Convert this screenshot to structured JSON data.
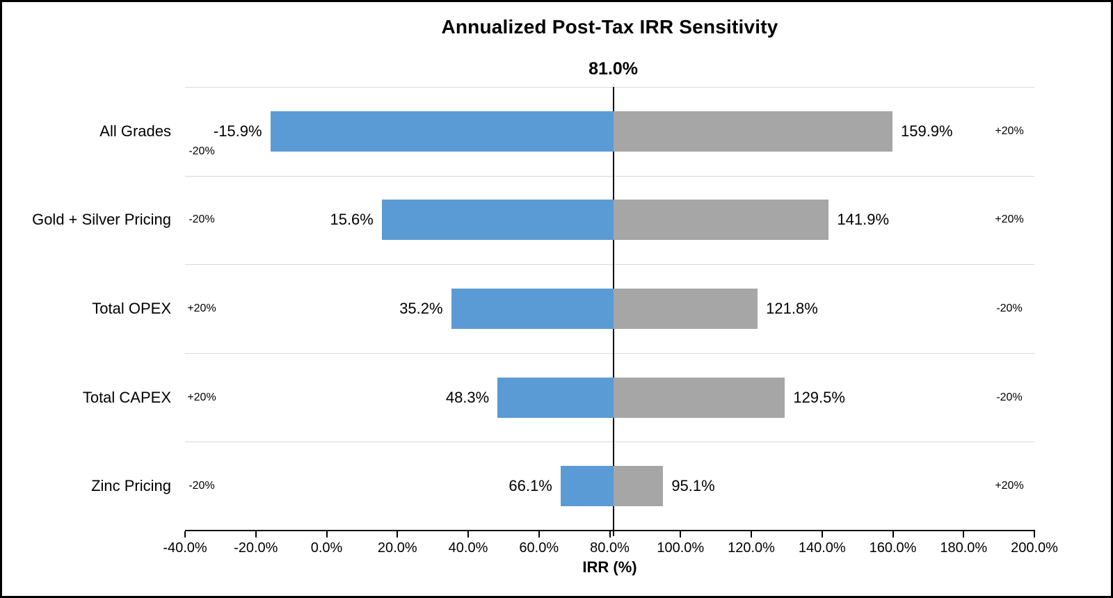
{
  "chart_data": {
    "type": "bar",
    "subtype": "tornado-sensitivity",
    "orientation": "horizontal",
    "title": "Annualized Post-Tax IRR Sensitivity",
    "center_label": "81.0%",
    "center_value": 81.0,
    "xlabel": "IRR (%)",
    "axis": {
      "min": -40,
      "max": 200,
      "tick_step": 20,
      "tick_values": [
        -40,
        -20,
        0,
        20,
        40,
        60,
        80,
        100,
        120,
        140,
        160,
        180,
        200
      ],
      "tick_labels": [
        "-40.0%",
        "-20.0%",
        "0.0%",
        "20.0%",
        "40.0%",
        "60.0%",
        "80.0%",
        "100.0%",
        "120.0%",
        "140.0%",
        "160.0%",
        "180.0%",
        "200.0%"
      ]
    },
    "grid": "row-separators-on",
    "legend_position": "none",
    "colors": {
      "low_bar": "#5b9bd5",
      "high_bar": "#a6a6a6",
      "gridline": "#d9d9d9",
      "center_line": "#000000",
      "axis_line": "#000000",
      "text": "#000000"
    },
    "rows": [
      {
        "category": "All Grades",
        "low": {
          "value": -15.9,
          "label": "-15.9%",
          "sign": "-20%",
          "sign_placement": "below"
        },
        "high": {
          "value": 159.9,
          "label": "159.9%",
          "sign": "+20%"
        }
      },
      {
        "category": "Gold + Silver Pricing",
        "low": {
          "value": 15.6,
          "label": "15.6%",
          "sign": "-20%",
          "sign_placement": "inline"
        },
        "high": {
          "value": 141.9,
          "label": "141.9%",
          "sign": "+20%"
        }
      },
      {
        "category": "Total OPEX",
        "low": {
          "value": 35.2,
          "label": "35.2%",
          "sign": "+20%",
          "sign_placement": "inline"
        },
        "high": {
          "value": 121.8,
          "label": "121.8%",
          "sign": "-20%"
        }
      },
      {
        "category": "Total CAPEX",
        "low": {
          "value": 48.3,
          "label": "48.3%",
          "sign": "+20%",
          "sign_placement": "inline"
        },
        "high": {
          "value": 129.5,
          "label": "129.5%",
          "sign": "-20%"
        }
      },
      {
        "category": "Zinc Pricing",
        "low": {
          "value": 66.1,
          "label": "66.1%",
          "sign": "-20%",
          "sign_placement": "inline"
        },
        "high": {
          "value": 95.1,
          "label": "95.1%",
          "sign": "+20%"
        }
      }
    ]
  }
}
